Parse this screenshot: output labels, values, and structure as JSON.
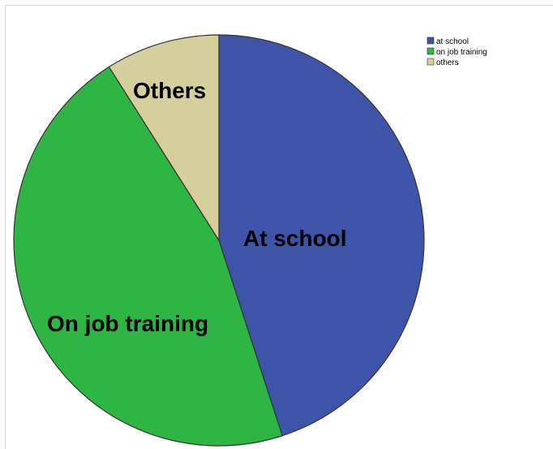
{
  "chart_data": {
    "type": "pie",
    "slices": [
      {
        "legend": "at school",
        "label": "At school",
        "value": 45,
        "color": "#3e54a9"
      },
      {
        "legend": "on job training",
        "label": "On job training",
        "value": 46,
        "color": "#2fb544"
      },
      {
        "legend": "others",
        "label": "Others",
        "value": 9,
        "color": "#d5cf9b"
      }
    ],
    "legend_position": "top-right"
  }
}
